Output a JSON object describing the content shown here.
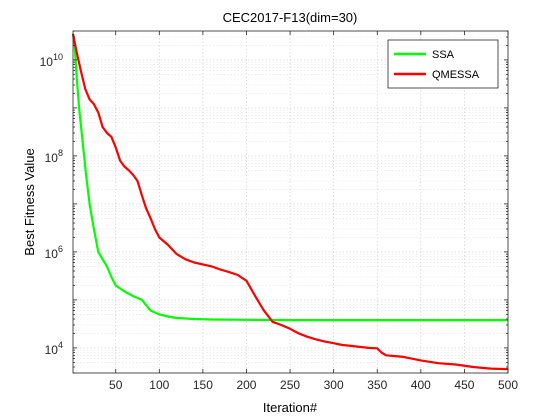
{
  "chart_data": {
    "type": "line",
    "title": "CEC2017-F13(dim=30)",
    "xlabel": "Iteration#",
    "ylabel": "Best Fitness Value",
    "xlim": [
      1,
      500
    ],
    "ylim": [
      3000,
      40000000000
    ],
    "yscale": "log",
    "grid": true,
    "grid_minor": true,
    "legend_position": "top-right",
    "x_ticks": [
      50,
      100,
      150,
      200,
      250,
      300,
      350,
      400,
      450,
      500
    ],
    "x_tick_labels": [
      "50",
      "100",
      "150",
      "200",
      "250",
      "300",
      "350",
      "400",
      "450",
      "500"
    ],
    "y_ticks": [
      {
        "value": 10000,
        "base": "10",
        "exp": "4"
      },
      {
        "value": 1000000,
        "base": "10",
        "exp": "6"
      },
      {
        "value": 100000000,
        "base": "10",
        "exp": "8"
      },
      {
        "value": 10000000000,
        "base": "10",
        "exp": "10"
      }
    ],
    "series": [
      {
        "name": "SSA",
        "color": "#00ff00",
        "points": [
          [
            1,
            35000000000
          ],
          [
            3,
            20000000000
          ],
          [
            5,
            5000000000
          ],
          [
            8,
            1000000000
          ],
          [
            12,
            200000000
          ],
          [
            16,
            40000000
          ],
          [
            20,
            10000000
          ],
          [
            25,
            3000000
          ],
          [
            30,
            1000000
          ],
          [
            35,
            700000
          ],
          [
            40,
            500000
          ],
          [
            45,
            300000
          ],
          [
            50,
            200000
          ],
          [
            60,
            150000
          ],
          [
            70,
            120000
          ],
          [
            80,
            100000
          ],
          [
            90,
            60000
          ],
          [
            100,
            50000
          ],
          [
            110,
            45000
          ],
          [
            120,
            42000
          ],
          [
            140,
            40000
          ],
          [
            160,
            39000
          ],
          [
            200,
            38500
          ],
          [
            250,
            38000
          ],
          [
            300,
            38000
          ],
          [
            400,
            38000
          ],
          [
            500,
            38000
          ]
        ]
      },
      {
        "name": "QMESSA",
        "color": "#ff0000",
        "points": [
          [
            1,
            35000000000
          ],
          [
            5,
            15000000000
          ],
          [
            10,
            6000000000
          ],
          [
            15,
            2500000000
          ],
          [
            20,
            1500000000
          ],
          [
            25,
            1200000000
          ],
          [
            30,
            800000000
          ],
          [
            35,
            400000000
          ],
          [
            40,
            300000000
          ],
          [
            45,
            250000000
          ],
          [
            50,
            150000000
          ],
          [
            55,
            80000000
          ],
          [
            60,
            60000000
          ],
          [
            65,
            50000000
          ],
          [
            70,
            40000000
          ],
          [
            75,
            30000000
          ],
          [
            80,
            15000000
          ],
          [
            85,
            8000000
          ],
          [
            90,
            5000000
          ],
          [
            95,
            3000000
          ],
          [
            100,
            2000000
          ],
          [
            110,
            1400000
          ],
          [
            120,
            900000
          ],
          [
            130,
            700000
          ],
          [
            140,
            600000
          ],
          [
            150,
            550000
          ],
          [
            160,
            500000
          ],
          [
            170,
            430000
          ],
          [
            180,
            380000
          ],
          [
            190,
            330000
          ],
          [
            200,
            250000
          ],
          [
            210,
            120000
          ],
          [
            220,
            60000
          ],
          [
            230,
            35000
          ],
          [
            240,
            30000
          ],
          [
            250,
            25000
          ],
          [
            260,
            20000
          ],
          [
            270,
            17000
          ],
          [
            280,
            15000
          ],
          [
            290,
            13500
          ],
          [
            300,
            12500
          ],
          [
            310,
            11500
          ],
          [
            320,
            11000
          ],
          [
            330,
            10500
          ],
          [
            340,
            10000
          ],
          [
            350,
            9800
          ],
          [
            355,
            8000
          ],
          [
            360,
            7000
          ],
          [
            380,
            6500
          ],
          [
            400,
            5500
          ],
          [
            420,
            4800
          ],
          [
            440,
            4500
          ],
          [
            460,
            4000
          ],
          [
            480,
            3700
          ],
          [
            500,
            3600
          ]
        ]
      }
    ]
  }
}
